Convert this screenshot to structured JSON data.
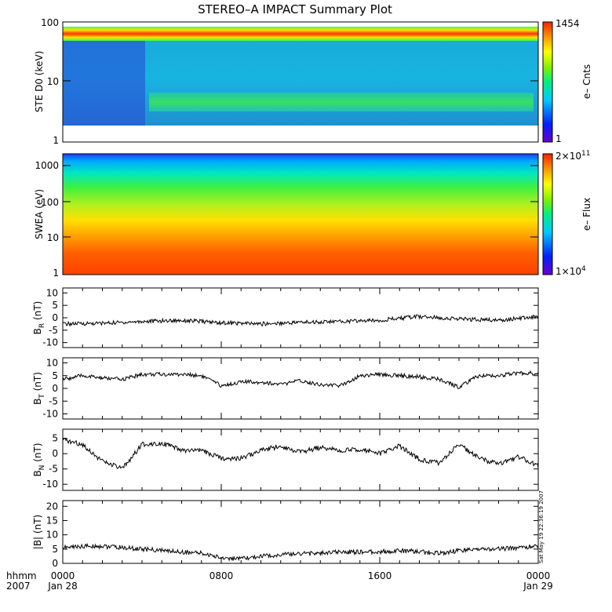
{
  "title": "STEREO–A IMPACT Summary Plot",
  "timestamp": "Sat May 19 22:36:19 2007",
  "time_axis": {
    "row1_label": "hhmm",
    "row2_label": "2007",
    "ticks": [
      {
        "label": "0000",
        "sublabel": "Jan 28"
      },
      {
        "label": "0800",
        "sublabel": ""
      },
      {
        "label": "1600",
        "sublabel": ""
      },
      {
        "label": "0000",
        "sublabel": "Jan 29"
      }
    ]
  },
  "chart_data": [
    {
      "type": "heatmap",
      "panel": "ste",
      "ylabel": "STE D0 (keV)",
      "yscale": "log",
      "ylim": [
        1,
        100
      ],
      "yticks": [
        "1",
        "10",
        "100"
      ],
      "colorbar": {
        "label": "e– Cnts",
        "max": "1454",
        "min": "1"
      },
      "features": "Bright band near 50-70 keV across the full day; background 2-40 keV, with enhanced flux near 3-6 keV after about 0330; sparse data gaps before about 0330"
    },
    {
      "type": "heatmap",
      "panel": "swea",
      "ylabel": "SWEA (eV)",
      "yscale": "log",
      "ylim": [
        1,
        2000
      ],
      "yticks": [
        "1",
        "10",
        "100",
        "1000"
      ],
      "colorbar": {
        "label": "e– Flux",
        "max_mantissa": "2×10",
        "max_exp": "11",
        "min_mantissa": "1×10",
        "min_exp": "4"
      },
      "features": "Flux highest at low energies (1-10 eV), decreasing toward 2000 eV"
    },
    {
      "type": "line",
      "panel": "br",
      "ylabel_main": "B",
      "ylabel_sub": "R",
      "ylabel_unit": " (nT)",
      "ylim": [
        -12,
        12
      ],
      "yticks": [
        -10,
        -5,
        0,
        5,
        10
      ],
      "x_hours": [
        0,
        2,
        4,
        6,
        8,
        10,
        12,
        14,
        16,
        18,
        20,
        22,
        24
      ],
      "values": [
        -2.5,
        -2.2,
        -1.5,
        -1.0,
        -2.0,
        -2.5,
        -1.8,
        -1.5,
        -1.0,
        0.5,
        -0.5,
        -1.0,
        0.5
      ]
    },
    {
      "type": "line",
      "panel": "bt",
      "ylabel_main": "B",
      "ylabel_sub": "T",
      "ylabel_unit": " (nT)",
      "ylim": [
        -12,
        12
      ],
      "yticks": [
        -10,
        -5,
        0,
        5,
        10
      ],
      "x_hours": [
        0,
        1,
        2,
        3,
        4,
        5,
        6,
        7,
        8,
        9,
        10,
        11,
        12,
        13,
        14,
        15,
        16,
        17,
        18,
        19,
        20,
        21,
        22,
        23,
        24
      ],
      "values": [
        3.5,
        5.0,
        4.0,
        3.5,
        5.5,
        5.5,
        5.5,
        5.0,
        1.0,
        2.5,
        2.5,
        1.5,
        3.0,
        1.5,
        1.0,
        5.0,
        5.5,
        5.0,
        4.5,
        3.5,
        0.5,
        5.0,
        5.0,
        6.0,
        6.0
      ]
    },
    {
      "type": "line",
      "panel": "bn",
      "ylabel_main": "B",
      "ylabel_sub": "N",
      "ylabel_unit": " (nT)",
      "ylim": [
        -12,
        8
      ],
      "yticks": [
        -10,
        -5,
        0,
        5
      ],
      "x_hours": [
        0,
        1,
        2,
        3,
        4,
        5,
        6,
        7,
        8,
        9,
        10,
        11,
        12,
        13,
        14,
        15,
        16,
        17,
        18,
        19,
        20,
        21,
        22,
        23,
        24
      ],
      "values": [
        4.5,
        3.0,
        -2.5,
        -5.0,
        3.0,
        3.5,
        1.0,
        1.0,
        -1.5,
        -1.5,
        1.0,
        2.5,
        0.5,
        2.0,
        1.0,
        1.5,
        0.0,
        2.5,
        -2.0,
        -3.0,
        3.0,
        -1.5,
        -3.5,
        -1.0,
        -4.0
      ]
    },
    {
      "type": "line",
      "panel": "bmag",
      "ylabel_main": "|B| (nT)",
      "ylim": [
        0,
        22
      ],
      "yticks": [
        0,
        5,
        10,
        15,
        20
      ],
      "x_hours": [
        0,
        1,
        2,
        3,
        4,
        5,
        6,
        7,
        8,
        9,
        10,
        11,
        12,
        13,
        14,
        15,
        16,
        17,
        18,
        19,
        20,
        21,
        22,
        23,
        24
      ],
      "values": [
        5.5,
        6.0,
        6.0,
        5.5,
        5.0,
        4.5,
        4.0,
        3.5,
        2.0,
        1.5,
        2.5,
        3.0,
        3.5,
        3.5,
        4.0,
        4.0,
        4.0,
        4.5,
        4.0,
        3.5,
        4.5,
        5.0,
        5.0,
        5.5,
        6.0
      ]
    }
  ]
}
